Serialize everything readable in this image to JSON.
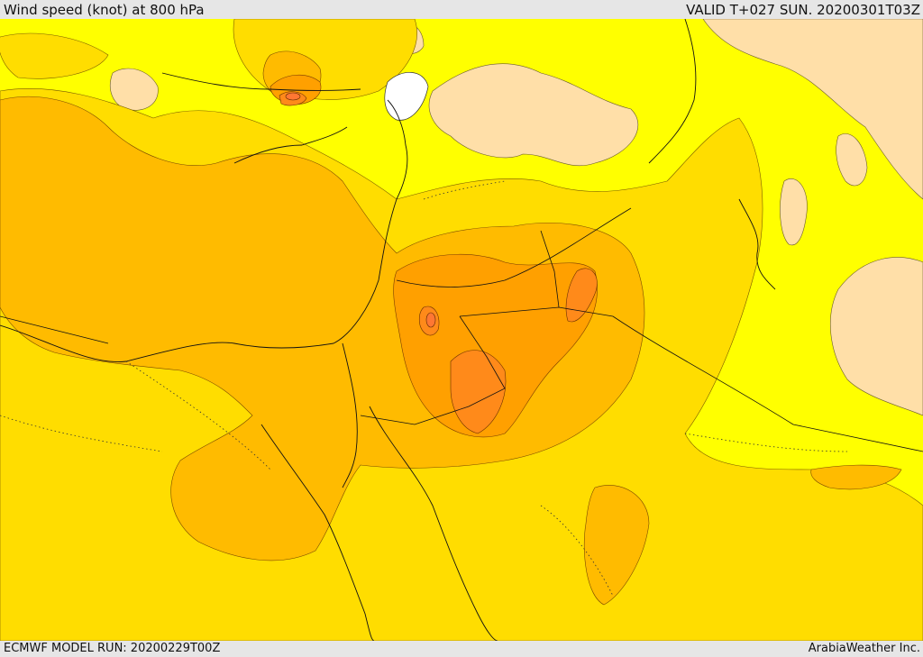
{
  "header": {
    "title": "Wind speed (knot) at 800 hPa",
    "valid": "VALID T+027 SUN. 20200301T03Z"
  },
  "footer": {
    "model_run": "ECMWF MODEL RUN: 20200229T00Z",
    "credit": "ArabiaWeather Inc."
  },
  "colors": {
    "ocean_missing": "#ffffff",
    "level_1": "#ffdfa8",
    "level_2": "#ffff00",
    "level_3": "#ffdd00",
    "level_4": "#ffbb00",
    "level_5": "#ffa000",
    "level_6": "#ff8a1a",
    "level_7": "#ff7733"
  }
}
